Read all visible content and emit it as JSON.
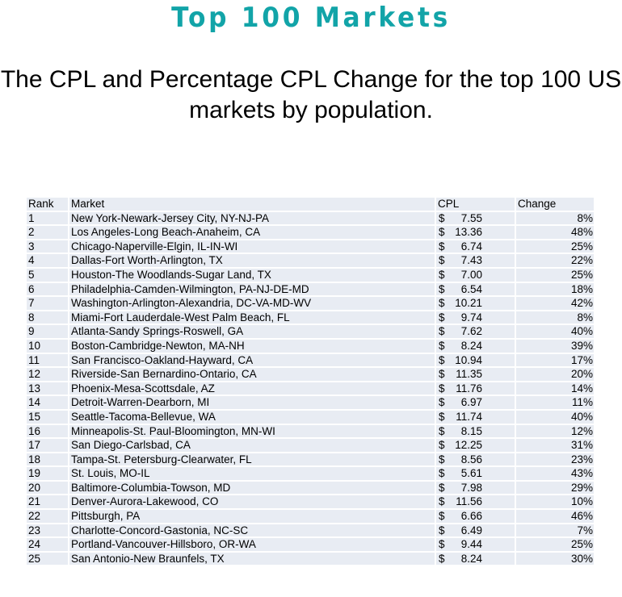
{
  "header": {
    "title": "Top 100 Markets",
    "subtitle_line1": "The CPL and Percentage CPL Change for the top 100 US",
    "subtitle_line2": "markets by population."
  },
  "colors": {
    "title": "#12a4a8",
    "cell_background": "#e8ecf3",
    "grid_lines": "#ffffff"
  },
  "table": {
    "columns": {
      "rank": "Rank",
      "market": "Market",
      "cpl": "CPL",
      "change": "Change"
    },
    "currency_symbol": "$",
    "rows": [
      {
        "rank": "1",
        "market": "New York-Newark-Jersey City, NY-NJ-PA",
        "cpl": "7.55",
        "change": "8%"
      },
      {
        "rank": "2",
        "market": "Los Angeles-Long Beach-Anaheim, CA",
        "cpl": "13.36",
        "change": "48%"
      },
      {
        "rank": "3",
        "market": "Chicago-Naperville-Elgin, IL-IN-WI",
        "cpl": "6.74",
        "change": "25%"
      },
      {
        "rank": "4",
        "market": "Dallas-Fort Worth-Arlington, TX",
        "cpl": "7.43",
        "change": "22%"
      },
      {
        "rank": "5",
        "market": "Houston-The Woodlands-Sugar Land, TX",
        "cpl": "7.00",
        "change": "25%"
      },
      {
        "rank": "6",
        "market": "Philadelphia-Camden-Wilmington, PA-NJ-DE-MD",
        "cpl": "6.54",
        "change": "18%"
      },
      {
        "rank": "7",
        "market": "Washington-Arlington-Alexandria, DC-VA-MD-WV",
        "cpl": "10.21",
        "change": "42%"
      },
      {
        "rank": "8",
        "market": "Miami-Fort Lauderdale-West Palm Beach, FL",
        "cpl": "9.74",
        "change": "8%"
      },
      {
        "rank": "9",
        "market": "Atlanta-Sandy Springs-Roswell, GA",
        "cpl": "7.62",
        "change": "40%"
      },
      {
        "rank": "10",
        "market": "Boston-Cambridge-Newton, MA-NH",
        "cpl": "8.24",
        "change": "39%"
      },
      {
        "rank": "11",
        "market": "San Francisco-Oakland-Hayward, CA",
        "cpl": "10.94",
        "change": "17%"
      },
      {
        "rank": "12",
        "market": "Riverside-San Bernardino-Ontario, CA",
        "cpl": "11.35",
        "change": "20%"
      },
      {
        "rank": "13",
        "market": "Phoenix-Mesa-Scottsdale, AZ",
        "cpl": "11.76",
        "change": "14%"
      },
      {
        "rank": "14",
        "market": "Detroit-Warren-Dearborn, MI",
        "cpl": "6.97",
        "change": "11%"
      },
      {
        "rank": "15",
        "market": "Seattle-Tacoma-Bellevue, WA",
        "cpl": "11.74",
        "change": "40%"
      },
      {
        "rank": "16",
        "market": "Minneapolis-St. Paul-Bloomington, MN-WI",
        "cpl": "8.15",
        "change": "12%"
      },
      {
        "rank": "17",
        "market": "San Diego-Carlsbad, CA",
        "cpl": "12.25",
        "change": "31%"
      },
      {
        "rank": "18",
        "market": "Tampa-St. Petersburg-Clearwater, FL",
        "cpl": "8.56",
        "change": "23%"
      },
      {
        "rank": "19",
        "market": "St. Louis, MO-IL",
        "cpl": "5.61",
        "change": "43%"
      },
      {
        "rank": "20",
        "market": "Baltimore-Columbia-Towson, MD",
        "cpl": "7.98",
        "change": "29%"
      },
      {
        "rank": "21",
        "market": "Denver-Aurora-Lakewood, CO",
        "cpl": "11.56",
        "change": "10%"
      },
      {
        "rank": "22",
        "market": "Pittsburgh, PA",
        "cpl": "6.66",
        "change": "46%"
      },
      {
        "rank": "23",
        "market": "Charlotte-Concord-Gastonia, NC-SC",
        "cpl": "6.49",
        "change": "7%"
      },
      {
        "rank": "24",
        "market": "Portland-Vancouver-Hillsboro, OR-WA",
        "cpl": "9.44",
        "change": "25%"
      },
      {
        "rank": "25",
        "market": "San Antonio-New Braunfels, TX",
        "cpl": "8.24",
        "change": "30%"
      }
    ]
  }
}
